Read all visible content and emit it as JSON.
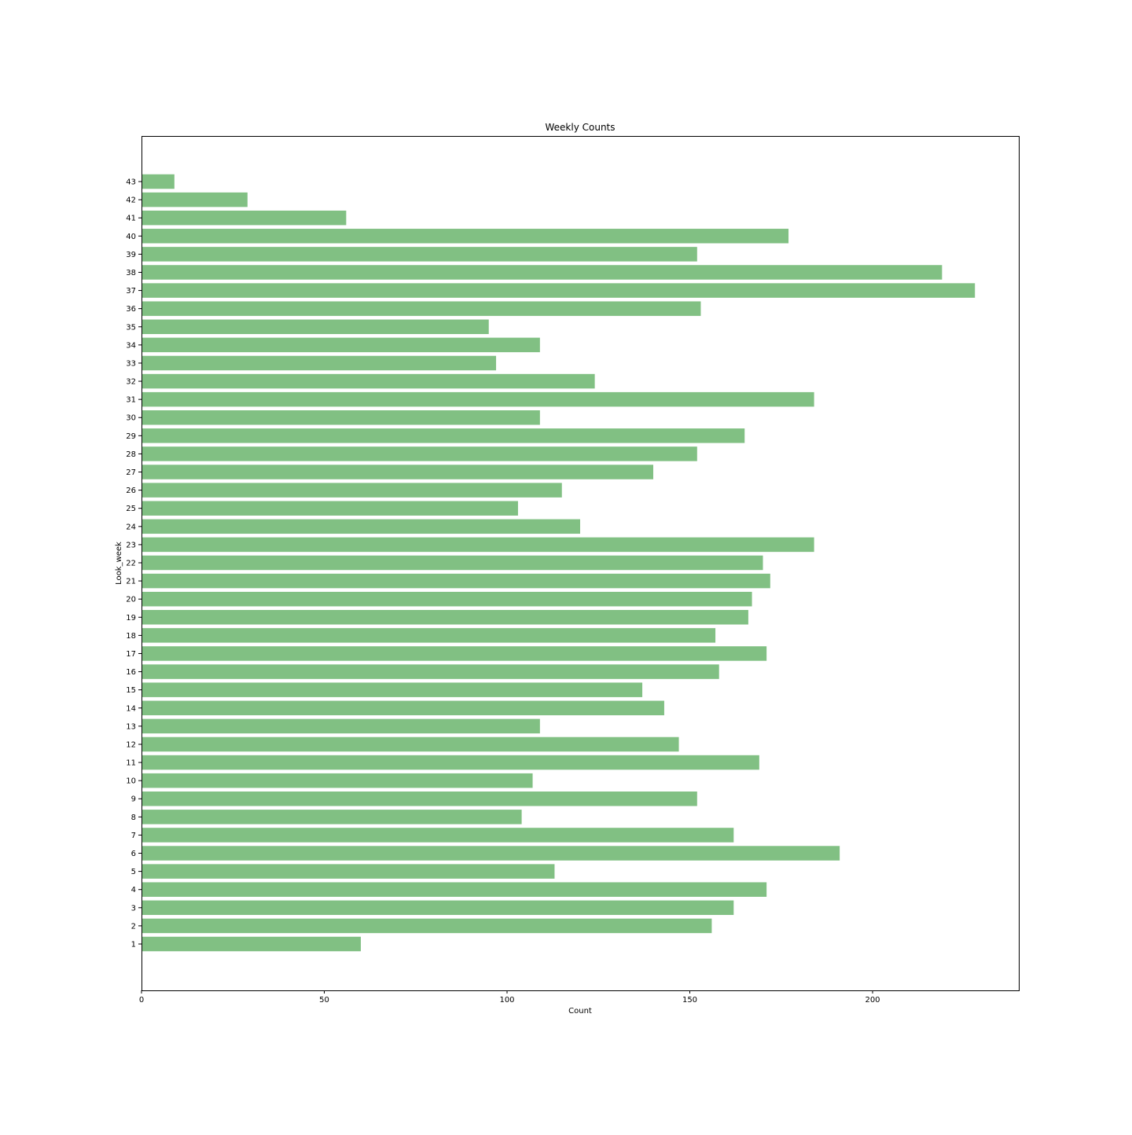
{
  "chart_data": {
    "type": "bar",
    "orientation": "horizontal",
    "title": "Weekly Counts",
    "xlabel": "Count",
    "ylabel": "Look_week",
    "xlim": [
      0,
      240
    ],
    "x_ticks": [
      0,
      50,
      100,
      150,
      200
    ],
    "grid": false,
    "bar_color": "#81c083",
    "categories": [
      "1",
      "2",
      "3",
      "4",
      "5",
      "6",
      "7",
      "8",
      "9",
      "10",
      "11",
      "12",
      "13",
      "14",
      "15",
      "16",
      "17",
      "18",
      "19",
      "20",
      "21",
      "22",
      "23",
      "24",
      "25",
      "26",
      "27",
      "28",
      "29",
      "30",
      "31",
      "32",
      "33",
      "34",
      "35",
      "36",
      "37",
      "38",
      "39",
      "40",
      "41",
      "42",
      "43"
    ],
    "values": [
      60,
      156,
      162,
      171,
      113,
      191,
      162,
      104,
      152,
      107,
      169,
      147,
      109,
      143,
      137,
      158,
      171,
      157,
      166,
      167,
      172,
      170,
      184,
      120,
      103,
      115,
      140,
      152,
      165,
      109,
      184,
      124,
      97,
      109,
      95,
      153,
      228,
      219,
      152,
      177,
      56,
      29,
      9
    ]
  }
}
